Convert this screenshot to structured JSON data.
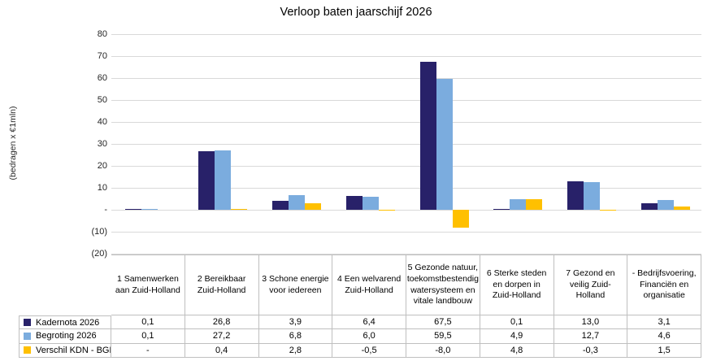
{
  "title": "Verloop baten jaarschijf 2026",
  "y_axis_title": "(bedragen x €1mln)",
  "colors": {
    "series_kadernota": "#282169",
    "series_begroting": "#7bacde",
    "series_verschil": "#ffc000",
    "gridline": "#d9d9d9",
    "table_border": "#bfbfbf",
    "text": "#000000"
  },
  "chart_data": {
    "type": "bar",
    "title": "Verloop baten jaarschijf 2026",
    "xlabel": "",
    "ylabel": "(bedragen x €1mln)",
    "ylim": [
      -20,
      80
    ],
    "grid": true,
    "legend_position": "data-table-left",
    "yticks": [
      {
        "value": 80,
        "label": "80"
      },
      {
        "value": 70,
        "label": "70"
      },
      {
        "value": 60,
        "label": "60"
      },
      {
        "value": 50,
        "label": "50"
      },
      {
        "value": 40,
        "label": "40"
      },
      {
        "value": 30,
        "label": "30"
      },
      {
        "value": 20,
        "label": "20"
      },
      {
        "value": 10,
        "label": "10"
      },
      {
        "value": 0,
        "label": "-"
      },
      {
        "value": -10,
        "label": "(10)"
      },
      {
        "value": -20,
        "label": "(20)"
      }
    ],
    "categories": [
      "1 Samenwerken aan Zuid-Holland",
      "2 Bereikbaar Zuid-Holland",
      "3 Schone energie voor iedereen",
      "4 Een welvarend Zuid-Holland",
      "5 Gezonde natuur, toekomstbestendig watersysteem en vitale landbouw",
      "6 Sterke steden en dorpen in Zuid-Holland",
      "7 Gezond en veilig Zuid-Holland",
      "- Bedrijfsvoering, Financiën en organisatie"
    ],
    "series": [
      {
        "name": "Kadernota 2026",
        "color": "#282169",
        "values": [
          0.1,
          26.8,
          3.9,
          6.4,
          67.5,
          0.1,
          13.0,
          3.1
        ]
      },
      {
        "name": "Begroting 2026",
        "color": "#7bacde",
        "values": [
          0.1,
          27.2,
          6.8,
          6.0,
          59.5,
          4.9,
          12.7,
          4.6
        ]
      },
      {
        "name": "Verschil KDN - BGR",
        "color": "#ffc000",
        "values": [
          null,
          0.4,
          2.8,
          -0.5,
          -8.0,
          4.8,
          -0.3,
          1.5
        ]
      }
    ]
  }
}
